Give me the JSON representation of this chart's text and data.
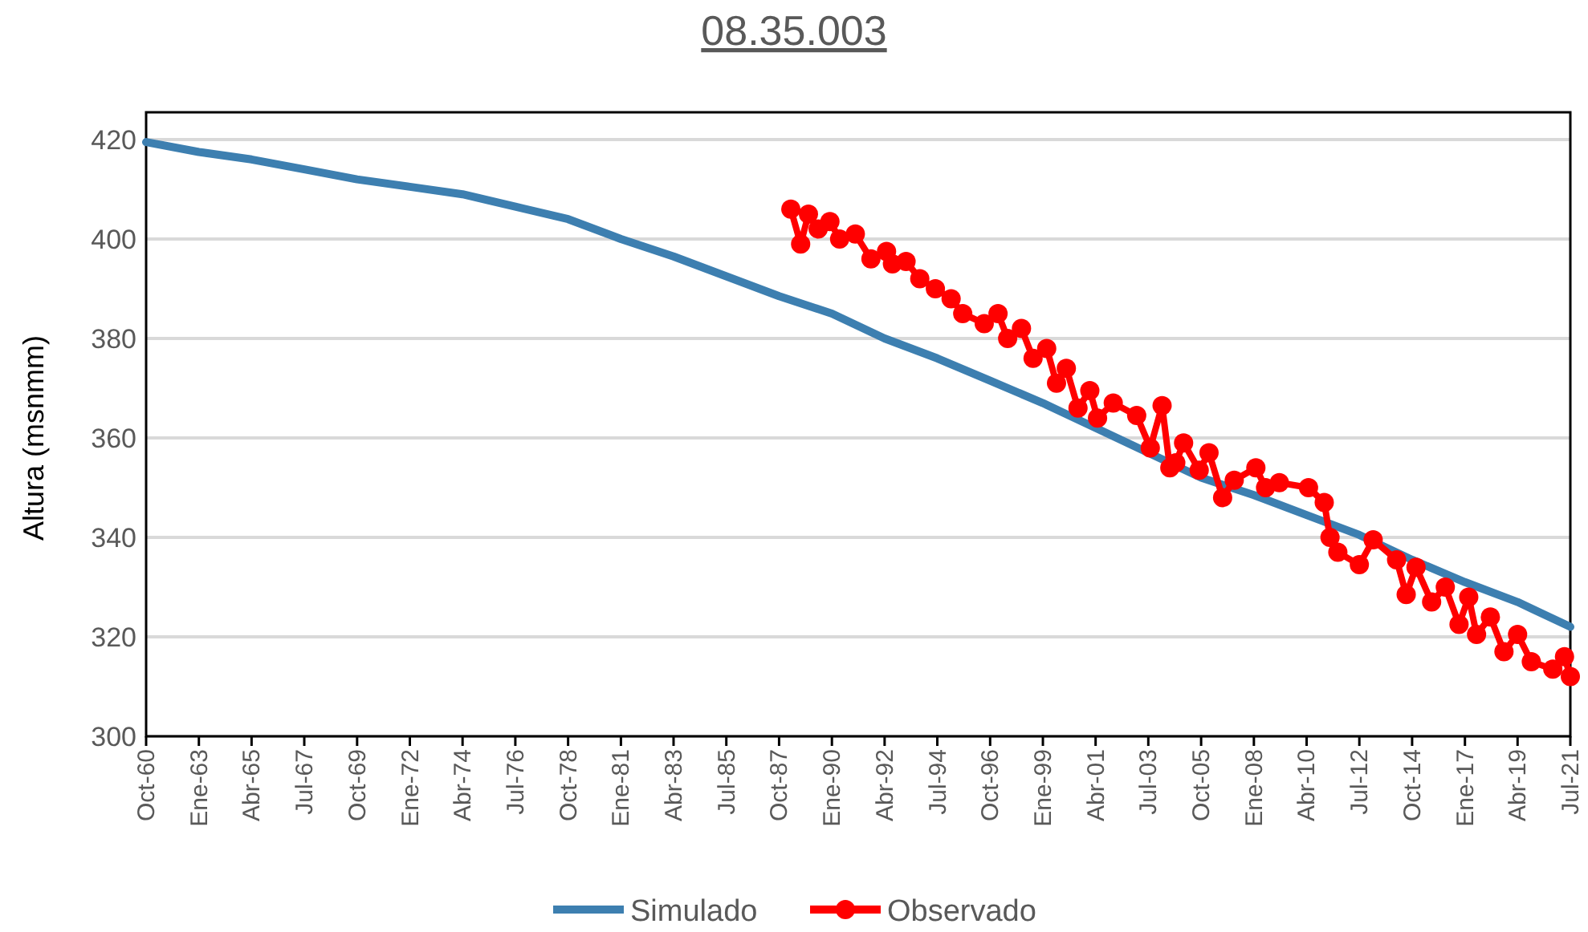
{
  "chart_data": {
    "type": "line",
    "title": "08.35.003",
    "ylabel": "Altura (msnmm)",
    "xlim": [
      "1960-10",
      "2021-07"
    ],
    "xticks": [
      {
        "value": "1960-10",
        "label": "Oct-60"
      },
      {
        "value": "1963-01",
        "label": "Ene-63"
      },
      {
        "value": "1965-04",
        "label": "Abr-65"
      },
      {
        "value": "1967-07",
        "label": "Jul-67"
      },
      {
        "value": "1969-10",
        "label": "Oct-69"
      },
      {
        "value": "1972-01",
        "label": "Ene-72"
      },
      {
        "value": "1974-04",
        "label": "Abr-74"
      },
      {
        "value": "1976-07",
        "label": "Jul-76"
      },
      {
        "value": "1978-10",
        "label": "Oct-78"
      },
      {
        "value": "1981-01",
        "label": "Ene-81"
      },
      {
        "value": "1983-04",
        "label": "Abr-83"
      },
      {
        "value": "1985-07",
        "label": "Jul-85"
      },
      {
        "value": "1987-10",
        "label": "Oct-87"
      },
      {
        "value": "1990-01",
        "label": "Ene-90"
      },
      {
        "value": "1992-04",
        "label": "Abr-92"
      },
      {
        "value": "1994-07",
        "label": "Jul-94"
      },
      {
        "value": "1996-10",
        "label": "Oct-96"
      },
      {
        "value": "1999-01",
        "label": "Ene-99"
      },
      {
        "value": "2001-04",
        "label": "Abr-01"
      },
      {
        "value": "2003-07",
        "label": "Jul-03"
      },
      {
        "value": "2005-10",
        "label": "Oct-05"
      },
      {
        "value": "2008-01",
        "label": "Ene-08"
      },
      {
        "value": "2010-04",
        "label": "Abr-10"
      },
      {
        "value": "2012-07",
        "label": "Jul-12"
      },
      {
        "value": "2014-10",
        "label": "Oct-14"
      },
      {
        "value": "2017-01",
        "label": "Ene-17"
      },
      {
        "value": "2019-04",
        "label": "Abr-19"
      },
      {
        "value": "2021-07",
        "label": "Jul-21"
      }
    ],
    "ylim": [
      300,
      420
    ],
    "yticks": [
      300,
      320,
      340,
      360,
      380,
      400,
      420
    ],
    "grid": "y",
    "legend": "bottom",
    "series": [
      {
        "name": "Simulado",
        "color": "#3d7fb0",
        "marker": "none",
        "x": [
          "1960-10",
          "1963-01",
          "1965-04",
          "1967-07",
          "1969-10",
          "1972-01",
          "1974-04",
          "1976-07",
          "1978-10",
          "1981-01",
          "1983-04",
          "1985-07",
          "1987-10",
          "1990-01",
          "1992-04",
          "1994-07",
          "1996-10",
          "1999-01",
          "2001-04",
          "2003-07",
          "2005-10",
          "2008-01",
          "2010-04",
          "2012-07",
          "2014-10",
          "2017-01",
          "2019-04",
          "2021-07"
        ],
        "values": [
          419.5,
          417.5,
          416,
          414,
          412,
          410.5,
          409,
          406.5,
          404,
          400,
          396.5,
          392.5,
          388.5,
          385,
          380,
          376,
          371.5,
          367,
          362,
          357,
          352,
          348.5,
          344.5,
          340.5,
          335.5,
          331,
          327,
          322
        ]
      },
      {
        "name": "Observado",
        "color": "#ff0000",
        "marker": "circle",
        "x": [
          "1988-04",
          "1988-09",
          "1989-01",
          "1989-06",
          "1989-12",
          "1990-05",
          "1991-01",
          "1991-09",
          "1992-05",
          "1992-08",
          "1993-03",
          "1993-10",
          "1994-06",
          "1995-02",
          "1995-08",
          "1996-07",
          "1997-02",
          "1997-07",
          "1998-02",
          "1998-08",
          "1999-03",
          "1999-08",
          "2000-01",
          "2000-07",
          "2001-01",
          "2001-05",
          "2002-01",
          "2003-01",
          "2003-08",
          "2004-02",
          "2004-06",
          "2004-09",
          "2005-01",
          "2005-09",
          "2006-02",
          "2006-09",
          "2007-03",
          "2008-02",
          "2008-07",
          "2009-02",
          "2010-05",
          "2011-01",
          "2011-04",
          "2011-08",
          "2012-07",
          "2013-02",
          "2014-02",
          "2014-07",
          "2014-12",
          "2015-08",
          "2016-03",
          "2016-10",
          "2017-03",
          "2017-07",
          "2018-02",
          "2018-09",
          "2019-04",
          "2019-11",
          "2020-10",
          "2021-04",
          "2021-07"
        ],
        "values": [
          406,
          399,
          405,
          402,
          403.5,
          400,
          401,
          396,
          397.5,
          395,
          395.5,
          392,
          390,
          388,
          385,
          383,
          385,
          380,
          382,
          376,
          378,
          371,
          374,
          366,
          369.5,
          364,
          367,
          364.5,
          358,
          366.5,
          354,
          355,
          359,
          353.5,
          357,
          348,
          351.5,
          354,
          350,
          351,
          350,
          347,
          340,
          337,
          334.5,
          339.5,
          335.5,
          328.5,
          334,
          327,
          330,
          322.5,
          328,
          320.5,
          324,
          317,
          320.5,
          315,
          313.5,
          316,
          312
        ]
      }
    ]
  }
}
